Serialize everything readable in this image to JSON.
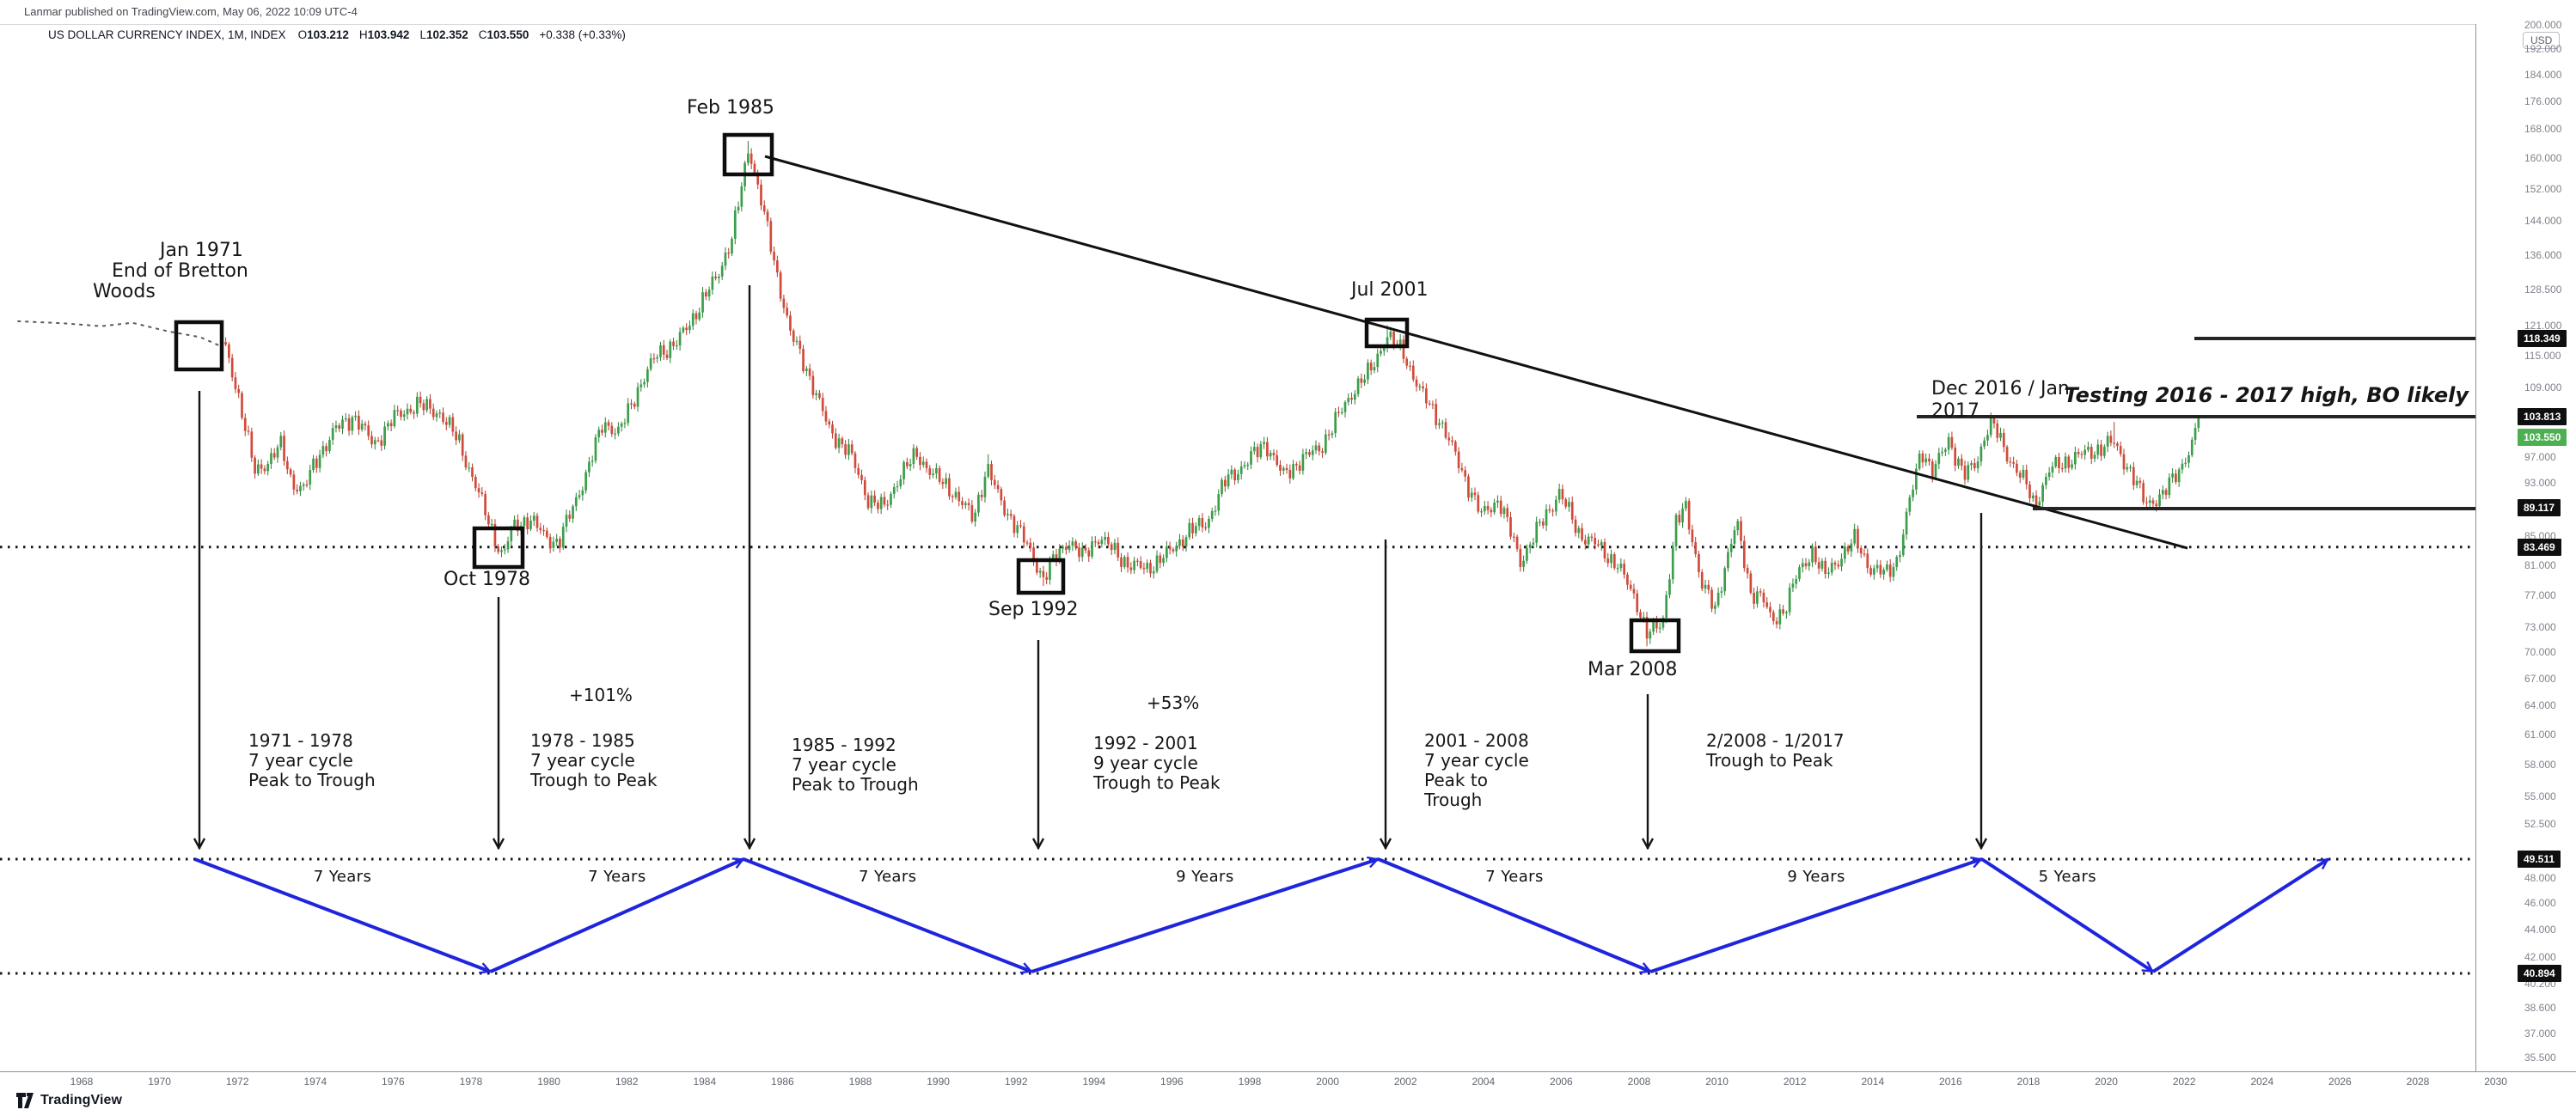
{
  "header": {
    "published_line": "Lanmar published on TradingView.com, May 06, 2022 10:09 UTC-4",
    "legend": {
      "symbol": "US DOLLAR CURRENCY INDEX, 1M, INDEX",
      "ohlc": [
        {
          "label": "O",
          "value": "103.212"
        },
        {
          "label": "H",
          "value": "103.942"
        },
        {
          "label": "L",
          "value": "102.352"
        },
        {
          "label": "C",
          "value": "103.550"
        }
      ],
      "change": "+0.338 (+0.33%)"
    }
  },
  "footer": {
    "logo_text": "TradingView"
  },
  "colors": {
    "up": "#3c9e4a",
    "up_wick": "#2e7d3a",
    "down": "#d14b3a",
    "down_wick": "#b23a2c",
    "cycle_blue": "#1f24dd",
    "annotation_black": "#141414",
    "chip_bg": "#0f0f0f",
    "chip_text": "#ffffff",
    "current_chip_bg": "#4caf50",
    "axis_text": "#80838c"
  },
  "axis": {
    "currency_badge": "USD",
    "price_ticks": [
      "200.000",
      "192.000",
      "184.000",
      "176.000",
      "168.000",
      "160.000",
      "152.000",
      "144.000",
      "136.000",
      "128.500",
      "121.000",
      "115.000",
      "109.000",
      "97.000",
      "93.000",
      "85.000",
      "81.000",
      "77.000",
      "73.000",
      "70.000",
      "67.000",
      "64.000",
      "61.000",
      "58.000",
      "55.000",
      "52.500",
      "48.000",
      "46.000",
      "44.000",
      "42.000",
      "40.200",
      "38.600",
      "37.000",
      "35.500"
    ],
    "chip_levels": [
      "118.349",
      "103.813",
      "89.117",
      "83.469",
      "49.511",
      "40.894"
    ],
    "current_price": "103.550",
    "time_ticks": [
      1968,
      1970,
      1972,
      1974,
      1976,
      1978,
      1980,
      1982,
      1984,
      1986,
      1988,
      1990,
      1992,
      1994,
      1996,
      1998,
      2000,
      2002,
      2004,
      2006,
      2008,
      2010,
      2012,
      2014,
      2016,
      2018,
      2020,
      2022,
      2024,
      2026,
      2028,
      2030
    ]
  },
  "chart_data": {
    "type": "candlestick",
    "title": "US Dollar Currency Index, monthly, log scale, with 7-9 year cycle annotations",
    "timeframe": "1M",
    "y_scale": "log",
    "y_range": [
      35.5,
      200
    ],
    "x_range_years": [
      1966.3,
      2030
    ],
    "key_levels": [
      118.349,
      103.813,
      89.117,
      83.469,
      49.511,
      40.894
    ],
    "level_lines_solid": [
      {
        "price": 118.349,
        "from_year": 2022.3
      },
      {
        "price": 103.813,
        "from_year": 2015.1
      },
      {
        "price": 89.117,
        "from_year": 2018.1
      }
    ],
    "level_lines_dotted": [
      83.469,
      49.511,
      40.894
    ],
    "trendline": {
      "from": {
        "year": 1985.55,
        "price": 162.5
      },
      "to": {
        "year": 2022.1,
        "price": 83.5
      }
    },
    "pre_index_line": [
      [
        1966.35,
        121.8
      ],
      [
        1967.5,
        121.4
      ],
      [
        1968.5,
        120.8
      ],
      [
        1969.3,
        121.5
      ],
      [
        1970.2,
        119.8
      ],
      [
        1971.05,
        118.6
      ],
      [
        1971.55,
        116.9
      ]
    ],
    "price_path": [
      [
        1971.7,
        116.0
      ],
      [
        1972.0,
        108.5
      ],
      [
        1972.45,
        94.5
      ],
      [
        1972.8,
        96.5
      ],
      [
        1973.1,
        99.0
      ],
      [
        1973.4,
        93.0
      ],
      [
        1973.7,
        92.0
      ],
      [
        1974.1,
        97.5
      ],
      [
        1974.5,
        101.5
      ],
      [
        1975.0,
        104.0
      ],
      [
        1975.5,
        99.0
      ],
      [
        1976.0,
        103.5
      ],
      [
        1976.6,
        106.0
      ],
      [
        1977.2,
        104.5
      ],
      [
        1977.7,
        99.5
      ],
      [
        1978.3,
        89.5
      ],
      [
        1978.8,
        82.1
      ],
      [
        1979.1,
        86.5
      ],
      [
        1979.5,
        87.5
      ],
      [
        1979.9,
        85.0
      ],
      [
        1980.25,
        84.0
      ],
      [
        1980.6,
        89.0
      ],
      [
        1981.0,
        95.0
      ],
      [
        1981.4,
        103.0
      ],
      [
        1981.8,
        101.0
      ],
      [
        1982.3,
        109.0
      ],
      [
        1982.8,
        115.5
      ],
      [
        1983.3,
        117.5
      ],
      [
        1983.8,
        124.0
      ],
      [
        1984.3,
        131.0
      ],
      [
        1984.7,
        140.0
      ],
      [
        1985.0,
        155.0
      ],
      [
        1985.13,
        163.5
      ],
      [
        1985.45,
        149.0
      ],
      [
        1985.8,
        134.0
      ],
      [
        1986.2,
        119.5
      ],
      [
        1986.7,
        111.0
      ],
      [
        1987.2,
        101.5
      ],
      [
        1987.7,
        98.0
      ],
      [
        1988.2,
        90.5
      ],
      [
        1988.6,
        89.0
      ],
      [
        1989.0,
        94.0
      ],
      [
        1989.45,
        97.5
      ],
      [
        1989.9,
        94.0
      ],
      [
        1990.4,
        91.5
      ],
      [
        1990.9,
        87.5
      ],
      [
        1991.25,
        95.5
      ],
      [
        1991.6,
        90.0
      ],
      [
        1992.0,
        86.5
      ],
      [
        1992.4,
        82.5
      ],
      [
        1992.7,
        79.2
      ],
      [
        1993.0,
        82.0
      ],
      [
        1993.35,
        84.5
      ],
      [
        1993.7,
        82.0
      ],
      [
        1994.1,
        85.0
      ],
      [
        1994.5,
        83.0
      ],
      [
        1994.9,
        81.0
      ],
      [
        1995.35,
        80.5
      ],
      [
        1995.9,
        82.5
      ],
      [
        1996.4,
        85.5
      ],
      [
        1996.9,
        87.0
      ],
      [
        1997.4,
        93.5
      ],
      [
        1997.9,
        96.0
      ],
      [
        1998.4,
        99.5
      ],
      [
        1998.85,
        94.0
      ],
      [
        1999.3,
        96.5
      ],
      [
        1999.8,
        98.5
      ],
      [
        2000.2,
        103.0
      ],
      [
        2000.7,
        109.0
      ],
      [
        2001.1,
        112.0
      ],
      [
        2001.52,
        119.0
      ],
      [
        2001.95,
        115.5
      ],
      [
        2002.4,
        108.0
      ],
      [
        2002.9,
        103.0
      ],
      [
        2003.4,
        95.5
      ],
      [
        2003.95,
        88.0
      ],
      [
        2004.4,
        90.5
      ],
      [
        2004.95,
        81.5
      ],
      [
        2005.4,
        86.0
      ],
      [
        2005.95,
        91.5
      ],
      [
        2006.45,
        85.5
      ],
      [
        2006.95,
        83.5
      ],
      [
        2007.45,
        81.0
      ],
      [
        2007.95,
        76.0
      ],
      [
        2008.22,
        72.0
      ],
      [
        2008.6,
        73.5
      ],
      [
        2008.95,
        87.0
      ],
      [
        2009.2,
        89.0
      ],
      [
        2009.6,
        78.8
      ],
      [
        2009.95,
        75.0
      ],
      [
        2010.25,
        82.0
      ],
      [
        2010.5,
        87.0
      ],
      [
        2010.85,
        77.5
      ],
      [
        2011.15,
        77.0
      ],
      [
        2011.4,
        73.5
      ],
      [
        2011.75,
        75.5
      ],
      [
        2012.05,
        79.5
      ],
      [
        2012.45,
        83.0
      ],
      [
        2012.75,
        79.5
      ],
      [
        2013.15,
        82.0
      ],
      [
        2013.55,
        84.5
      ],
      [
        2013.95,
        80.5
      ],
      [
        2014.35,
        79.8
      ],
      [
        2014.65,
        82.0
      ],
      [
        2014.95,
        90.0
      ],
      [
        2015.25,
        98.5
      ],
      [
        2015.55,
        94.5
      ],
      [
        2015.95,
        100.0
      ],
      [
        2016.35,
        94.0
      ],
      [
        2016.65,
        96.0
      ],
      [
        2016.95,
        102.0
      ],
      [
        2017.08,
        102.5
      ],
      [
        2017.45,
        97.5
      ],
      [
        2017.95,
        92.5
      ],
      [
        2018.15,
        89.5
      ],
      [
        2018.55,
        95.0
      ],
      [
        2018.95,
        96.3
      ],
      [
        2019.4,
        97.5
      ],
      [
        2019.85,
        98.5
      ],
      [
        2020.18,
        99.5
      ],
      [
        2020.55,
        95.5
      ],
      [
        2020.95,
        90.5
      ],
      [
        2021.05,
        89.9
      ],
      [
        2021.45,
        91.0
      ],
      [
        2021.95,
        96.0
      ],
      [
        2022.2,
        98.8
      ],
      [
        2022.37,
        103.55
      ]
    ],
    "wick_spikes_high": [
      [
        1985.13,
        164.7
      ],
      [
        2001.52,
        121.0
      ],
      [
        2020.18,
        102.9
      ],
      [
        1991.25,
        97.5
      ]
    ],
    "wick_spikes_low": [
      [
        1978.8,
        82.07
      ],
      [
        1992.7,
        78.2
      ],
      [
        2008.22,
        70.7
      ],
      [
        2004.95,
        80.4
      ],
      [
        2021.05,
        89.2
      ]
    ],
    "event_boxes_years": [
      1971.0,
      1978.7,
      1985.1,
      1992.6,
      2001.5,
      2008.2
    ],
    "cycles": {
      "top_level": 49.511,
      "bottom_level": 40.894,
      "vertex_years": [
        1970.9,
        1978.5,
        1985.0,
        1992.4,
        2001.3,
        2008.3,
        2016.8,
        2021.2,
        2025.7
      ],
      "start_at_top": true,
      "labels": [
        "7 Years",
        "7 Years",
        "7 Years",
        "9 Years",
        "7 Years",
        "9 Years",
        "5 Years"
      ]
    },
    "annotations": [
      {
        "id": "jan-1971",
        "lines": [
          "Jan 1971",
          "End of Bretton",
          "Woods"
        ]
      },
      {
        "id": "oct-1978",
        "lines": [
          "Oct 1978"
        ]
      },
      {
        "id": "feb-1985",
        "lines": [
          "Feb 1985"
        ]
      },
      {
        "id": "sep-1992",
        "lines": [
          "Sep 1992"
        ]
      },
      {
        "id": "jul-2001",
        "lines": [
          "Jul 2001"
        ]
      },
      {
        "id": "mar-2008",
        "lines": [
          "Mar 2008"
        ]
      },
      {
        "id": "dec-2016",
        "lines": [
          "Dec 2016 / Jan",
          "2017"
        ]
      },
      {
        "id": "testing-high",
        "lines": [
          "Testing 2016 - 2017 high, BO likely"
        ]
      },
      {
        "id": "cycle-1971-1978",
        "lines": [
          "1971 - 1978",
          "7 year cycle",
          "Peak to Trough"
        ]
      },
      {
        "id": "pct-101",
        "lines": [
          "+101%"
        ]
      },
      {
        "id": "cycle-1978-1985",
        "lines": [
          "1978 - 1985",
          "7 year cycle",
          "Trough to Peak"
        ]
      },
      {
        "id": "cycle-1985-1992",
        "lines": [
          "1985 - 1992",
          "7 year cycle",
          "Peak to Trough"
        ]
      },
      {
        "id": "pct-53",
        "lines": [
          "+53%"
        ]
      },
      {
        "id": "cycle-1992-2001",
        "lines": [
          "1992 - 2001",
          "9 year cycle",
          "Trough to Peak"
        ]
      },
      {
        "id": "cycle-2001-2008",
        "lines": [
          "2001 - 2008",
          "7 year cycle",
          "Peak to",
          "Trough"
        ]
      },
      {
        "id": "cycle-2008-2017",
        "lines": [
          "2/2008 - 1/2017",
          "Trough to Peak"
        ]
      }
    ]
  }
}
